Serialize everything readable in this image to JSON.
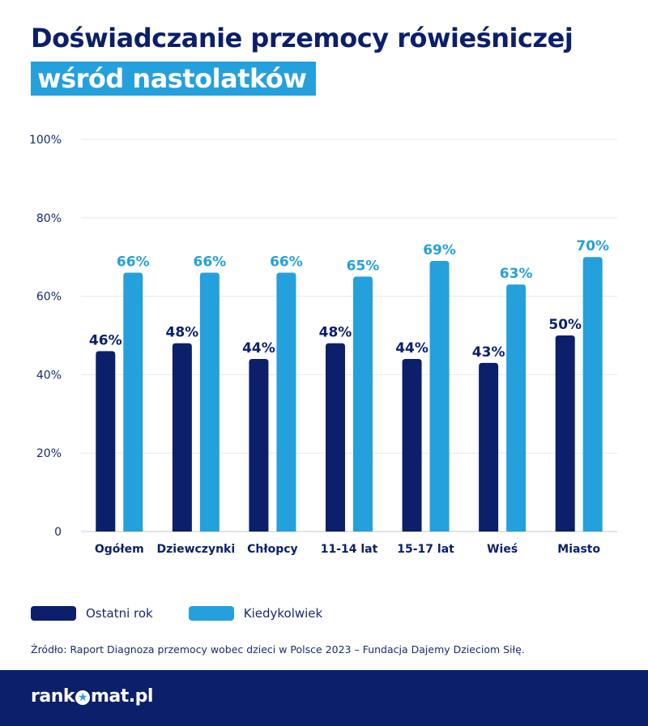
{
  "header": {
    "title_line1": "Doświadczanie przemocy rówieśniczej",
    "title_line2": "wśród nastolatków"
  },
  "chart_data": {
    "type": "bar",
    "title": "Doświadczanie przemocy rówieśniczej wśród nastolatków",
    "xlabel": "",
    "ylabel": "",
    "ylim": [
      0,
      100
    ],
    "yticks": [
      0,
      20,
      40,
      60,
      80,
      100
    ],
    "ytick_labels": [
      "0",
      "20%",
      "40%",
      "60%",
      "80%",
      "100%"
    ],
    "grid": true,
    "legend_position": "bottom-left",
    "categories": [
      "Ogółem",
      "Dziewczynki",
      "Chłopcy",
      "11-14 lat",
      "15-17 lat",
      "Wieś",
      "Miasto"
    ],
    "series": [
      {
        "name": "Ostatni rok",
        "color": "#0b1f6b",
        "values": [
          46,
          48,
          44,
          48,
          44,
          43,
          50
        ],
        "labels": [
          "46%",
          "48%",
          "44%",
          "48%",
          "44%",
          "43%",
          "50%"
        ]
      },
      {
        "name": "Kiedykolwiek",
        "color": "#24a0dc",
        "values": [
          66,
          66,
          66,
          65,
          69,
          63,
          70
        ],
        "labels": [
          "66%",
          "66%",
          "66%",
          "65%",
          "69%",
          "63%",
          "70%"
        ]
      }
    ]
  },
  "legend": {
    "items": [
      {
        "label": "Ostatni rok",
        "color": "#0b1f6b"
      },
      {
        "label": "Kiedykolwiek",
        "color": "#24a0dc"
      }
    ]
  },
  "source": "Źródło: Raport Diagnoza przemocy wobec dzieci w Polsce 2023 – Fundacja Dajemy Dzieciom Siłę.",
  "footer": {
    "logo_left": "rank",
    "logo_star": "★",
    "logo_right": "mat.pl"
  },
  "colors": {
    "dark": "#0b1f6b",
    "light": "#24a0dc",
    "grid": "#e6e8ee",
    "axis_text": "#1a2a6c"
  }
}
